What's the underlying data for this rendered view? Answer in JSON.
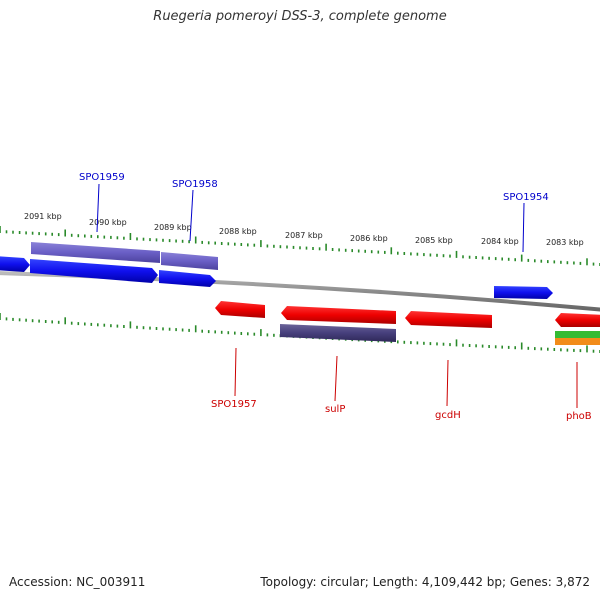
{
  "title": "Ruegeria pomeroyi DSS-3, complete genome",
  "footer": {
    "accession": "Accession: NC_003911",
    "topology": "Topology: circular; Length: 4,109,442 bp; Genes: 3,872"
  },
  "colors": {
    "backbone": "#8c8c8c",
    "tick": "#2a8a2a",
    "forward_label": "#0000cc",
    "reverse_label": "#cc0000"
  },
  "scale_labels": [
    "2091 kbp",
    "2090 kbp",
    "2089 kbp",
    "2088 kbp",
    "2087 kbp",
    "2086 kbp",
    "2085 kbp",
    "2084 kbp",
    "2083 kbp"
  ],
  "gene_labels_forward": [
    "SPO1959",
    "SPO1958",
    "SPO1954"
  ],
  "gene_labels_reverse": [
    "SPO1957",
    "sulP",
    "gcdH",
    "phoB"
  ]
}
